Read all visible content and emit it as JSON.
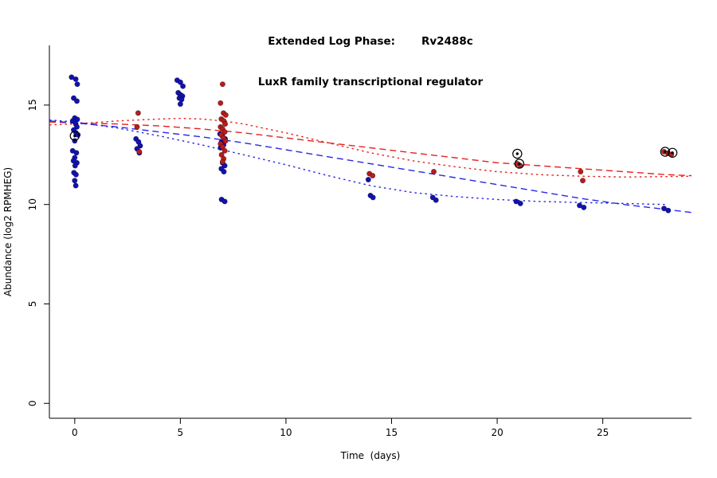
{
  "title": {
    "line1": "Extended Log Phase:       Rv2488c",
    "line2": "LuxR family transcriptional regulator"
  },
  "colors": {
    "blue_point": "#1212b0",
    "red_point": "#b81c1c",
    "blue_line": "#2828e8",
    "red_line": "#e82020",
    "marked": "#000000",
    "axis": "#000000"
  },
  "chart_data": {
    "type": "scatter",
    "title": "Extended Log Phase: Rv2488c — LuxR family transcriptional regulator",
    "xlabel": "Time  (days)",
    "ylabel": "Abundance  (log2 RPMHEG)",
    "xlim": [
      -1.2,
      29.2
    ],
    "ylim": [
      -0.75,
      18
    ],
    "x_ticks": [
      0,
      5,
      10,
      15,
      20,
      25
    ],
    "y_ticks": [
      0,
      5,
      10,
      15
    ],
    "grid": false,
    "legend": "none",
    "series": [
      {
        "name": "blue-replicates",
        "color_key": "blue_point",
        "points": [
          [
            -0.15,
            16.4
          ],
          [
            0.05,
            16.3
          ],
          [
            0.12,
            16.05
          ],
          [
            -0.05,
            15.35
          ],
          [
            0.1,
            15.2
          ],
          [
            0,
            14.35
          ],
          [
            0.12,
            14.28
          ],
          [
            -0.1,
            14.2
          ],
          [
            0.05,
            14.05
          ],
          [
            0.1,
            13.9
          ],
          [
            -0.05,
            13.75
          ],
          [
            0.06,
            13.6
          ],
          [
            0.15,
            13.5
          ],
          [
            0,
            13.2
          ],
          [
            -0.1,
            12.7
          ],
          [
            0.08,
            12.6
          ],
          [
            0,
            12.35
          ],
          [
            -0.06,
            12.2
          ],
          [
            0.1,
            12.1
          ],
          [
            0.02,
            11.95
          ],
          [
            -0.04,
            11.6
          ],
          [
            0.06,
            11.5
          ],
          [
            0,
            11.2
          ],
          [
            0.05,
            10.95
          ],
          [
            2.9,
            13.3
          ],
          [
            3.02,
            13.15
          ],
          [
            3.1,
            12.95
          ],
          [
            2.95,
            12.8
          ],
          [
            3.06,
            12.6
          ],
          [
            4.85,
            16.25
          ],
          [
            5.0,
            16.15
          ],
          [
            5.12,
            15.95
          ],
          [
            4.9,
            15.62
          ],
          [
            5.0,
            15.52
          ],
          [
            5.1,
            15.45
          ],
          [
            4.95,
            15.35
          ],
          [
            5.06,
            15.28
          ],
          [
            5.0,
            15.05
          ],
          [
            6.88,
            13.55
          ],
          [
            7.0,
            13.42
          ],
          [
            7.12,
            13.3
          ],
          [
            6.95,
            13.15
          ],
          [
            7.05,
            13.0
          ],
          [
            6.9,
            12.85
          ],
          [
            7.0,
            12.1
          ],
          [
            7.1,
            11.95
          ],
          [
            6.94,
            11.8
          ],
          [
            7.06,
            11.65
          ],
          [
            6.95,
            10.25
          ],
          [
            7.1,
            10.15
          ],
          [
            13.9,
            11.25
          ],
          [
            14.0,
            10.45
          ],
          [
            14.12,
            10.35
          ],
          [
            16.95,
            10.35
          ],
          [
            17.1,
            10.22
          ],
          [
            20.9,
            10.15
          ],
          [
            21.1,
            10.05
          ],
          [
            23.9,
            9.95
          ],
          [
            24.1,
            9.85
          ],
          [
            27.9,
            9.8
          ],
          [
            28.1,
            9.7
          ]
        ]
      },
      {
        "name": "red-replicates",
        "color_key": "red_point",
        "points": [
          [
            3.0,
            14.6
          ],
          [
            2.95,
            13.9
          ],
          [
            3.06,
            12.65
          ],
          [
            7.0,
            16.05
          ],
          [
            6.9,
            15.1
          ],
          [
            7.04,
            14.6
          ],
          [
            7.15,
            14.5
          ],
          [
            6.94,
            14.3
          ],
          [
            7.06,
            14.2
          ],
          [
            7.12,
            14.05
          ],
          [
            6.9,
            13.9
          ],
          [
            7.0,
            13.8
          ],
          [
            7.1,
            13.65
          ],
          [
            6.94,
            13.5
          ],
          [
            7.04,
            13.35
          ],
          [
            7.14,
            13.2
          ],
          [
            6.9,
            13.05
          ],
          [
            7.0,
            12.9
          ],
          [
            7.1,
            12.7
          ],
          [
            6.95,
            12.5
          ],
          [
            7.05,
            12.3
          ],
          [
            7.0,
            12.15
          ],
          [
            13.95,
            11.55
          ],
          [
            14.1,
            11.45
          ],
          [
            17.0,
            11.65
          ],
          [
            20.95,
            12.05
          ],
          [
            21.1,
            11.95
          ],
          [
            23.95,
            11.65
          ],
          [
            24.05,
            11.2
          ],
          [
            27.9,
            12.65
          ],
          [
            28.08,
            12.58
          ],
          [
            28.25,
            12.52
          ]
        ]
      }
    ],
    "marked_points": [
      [
        0.0,
        13.45
      ],
      [
        20.95,
        12.55
      ],
      [
        21.05,
        12.05
      ],
      [
        27.95,
        12.65
      ],
      [
        28.3,
        12.6
      ]
    ],
    "curves": [
      {
        "name": "red-dashed-fit",
        "style": "dashed",
        "color_key": "red_line",
        "points": [
          [
            -1.2,
            14.15
          ],
          [
            0,
            14.1
          ],
          [
            2,
            14.05
          ],
          [
            4,
            13.95
          ],
          [
            6,
            13.8
          ],
          [
            8,
            13.6
          ],
          [
            10,
            13.35
          ],
          [
            12,
            13.1
          ],
          [
            14,
            12.85
          ],
          [
            16,
            12.6
          ],
          [
            18,
            12.35
          ],
          [
            20,
            12.1
          ],
          [
            22,
            11.95
          ],
          [
            24,
            11.8
          ],
          [
            26,
            11.65
          ],
          [
            28,
            11.5
          ],
          [
            29.2,
            11.45
          ]
        ]
      },
      {
        "name": "red-dotted-fit",
        "style": "dotted",
        "color_key": "red_line",
        "points": [
          [
            -1.2,
            14.0
          ],
          [
            0,
            14.05
          ],
          [
            2,
            14.2
          ],
          [
            4,
            14.3
          ],
          [
            5,
            14.33
          ],
          [
            6,
            14.3
          ],
          [
            7,
            14.2
          ],
          [
            8,
            14.05
          ],
          [
            10,
            13.6
          ],
          [
            12,
            13.1
          ],
          [
            14,
            12.6
          ],
          [
            16,
            12.2
          ],
          [
            18,
            11.9
          ],
          [
            20,
            11.65
          ],
          [
            22,
            11.5
          ],
          [
            24,
            11.42
          ],
          [
            26,
            11.38
          ],
          [
            28,
            11.4
          ],
          [
            29.2,
            11.42
          ]
        ]
      },
      {
        "name": "blue-dashed-fit",
        "style": "dashed",
        "color_key": "blue_line",
        "points": [
          [
            -1.2,
            14.2
          ],
          [
            0,
            14.1
          ],
          [
            2,
            13.9
          ],
          [
            4,
            13.65
          ],
          [
            6,
            13.4
          ],
          [
            8,
            13.1
          ],
          [
            10,
            12.75
          ],
          [
            12,
            12.4
          ],
          [
            14,
            12.05
          ],
          [
            16,
            11.7
          ],
          [
            18,
            11.35
          ],
          [
            20,
            11.0
          ],
          [
            22,
            10.65
          ],
          [
            24,
            10.3
          ],
          [
            26,
            10.0
          ],
          [
            28,
            9.75
          ],
          [
            29.2,
            9.6
          ]
        ]
      },
      {
        "name": "blue-dotted-fit",
        "style": "dotted",
        "color_key": "blue_line",
        "points": [
          [
            -1.2,
            14.25
          ],
          [
            0,
            14.15
          ],
          [
            2,
            13.85
          ],
          [
            4,
            13.45
          ],
          [
            6,
            13.0
          ],
          [
            8,
            12.5
          ],
          [
            10,
            12.0
          ],
          [
            12,
            11.45
          ],
          [
            14,
            10.95
          ],
          [
            16,
            10.6
          ],
          [
            18,
            10.4
          ],
          [
            20,
            10.25
          ],
          [
            22,
            10.15
          ],
          [
            24,
            10.1
          ],
          [
            26,
            10.05
          ],
          [
            28,
            10.0
          ]
        ]
      }
    ]
  }
}
